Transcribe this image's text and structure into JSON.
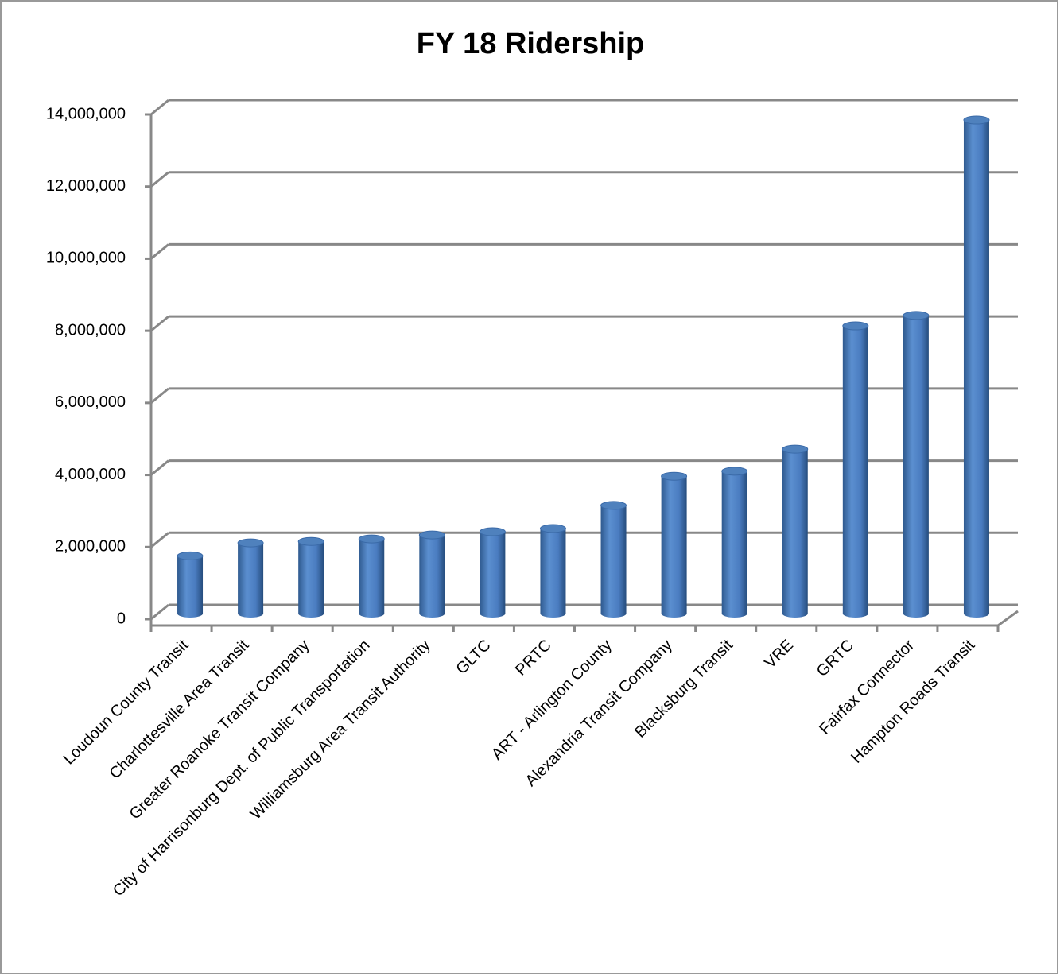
{
  "chart_data": {
    "type": "bar",
    "title": "FY 18 Ridership",
    "categories": [
      "Loudoun County Transit",
      "Charlottesville Area Transit",
      "Greater Roanoke Transit Company",
      "City of Harrisonburg Dept. of Public Transportation",
      "Williamsburg Area Transit Authority",
      "GLTC",
      "PRTC",
      "ART - Arlington County",
      "Alexandria Transit Company",
      "Blacksburg Transit",
      "VRE",
      "GRTC",
      "Fairfax Connector",
      "Hampton Roads Transit"
    ],
    "values": [
      1600000,
      1960000,
      2000000,
      2070000,
      2180000,
      2270000,
      2360000,
      3000000,
      3810000,
      3950000,
      4560000,
      7980000,
      8270000,
      13690000
    ],
    "color": "#4f81bd",
    "ylim": [
      0,
      14000000
    ],
    "yticks": [
      0,
      {
        "value": 2000000,
        "label": "2,000,000"
      },
      {
        "value": 4000000,
        "label": "4,000,000"
      },
      {
        "value": 6000000,
        "label": "6,000,000"
      },
      {
        "value": 8000000,
        "label": "8,000,000"
      },
      {
        "value": 10000000,
        "label": "10,000,000"
      },
      {
        "value": 12000000,
        "label": "12,000,000"
      },
      {
        "value": 14000000,
        "label": "14,000,000"
      }
    ],
    "grid": true
  }
}
